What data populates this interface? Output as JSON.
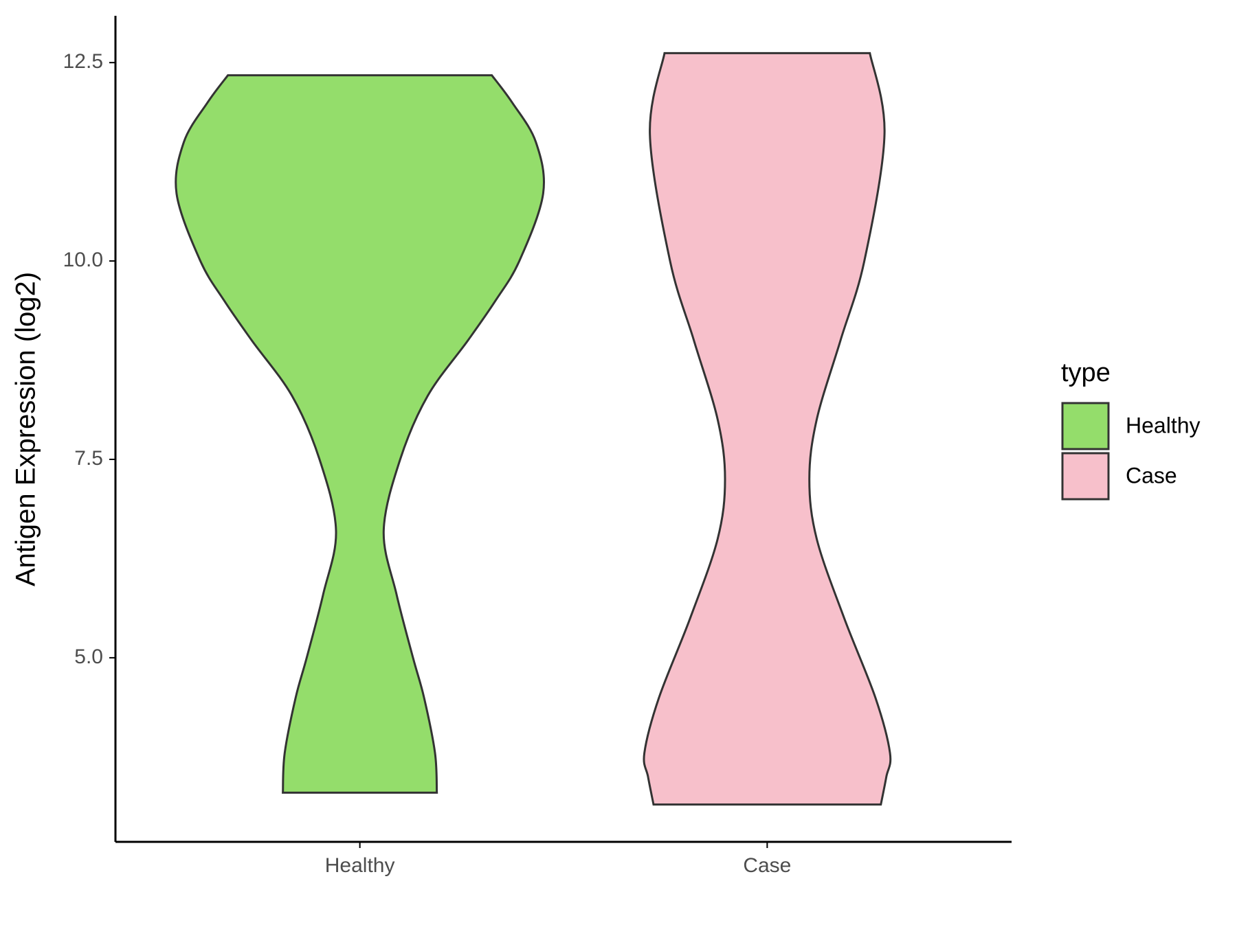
{
  "chart_data": {
    "type": "violin",
    "y_label": "Antigen Expression (log2)",
    "categories": [
      "Healthy",
      "Case"
    ],
    "ylim": [
      2.68,
      13.09
    ],
    "yticks": [
      {
        "value": 5,
        "label": "5.0"
      },
      7.5,
      {
        "value": 10,
        "label": "10.0"
      },
      12.5
    ],
    "legend_title": "type",
    "legend_position": "right",
    "series": [
      {
        "name": "Healthy",
        "color": "#94dd6b",
        "levels": [
          3.3,
          3.8,
          4.5,
          5.0,
          5.8,
          6.6,
          7.5,
          8.3,
          9.0,
          9.5,
          10.0,
          10.85,
          11.5,
          12.0,
          12.34
        ],
        "density": [
          0.42,
          0.41,
          0.35,
          0.29,
          0.2,
          0.13,
          0.22,
          0.37,
          0.59,
          0.74,
          0.87,
          1.0,
          0.96,
          0.83,
          0.72
        ]
      },
      {
        "name": "Case",
        "color": "#f7c0cb",
        "levels": [
          3.15,
          3.5,
          3.8,
          4.5,
          5.5,
          6.5,
          7.25,
          8.0,
          9.0,
          10.0,
          11.6,
          12.62
        ],
        "density": [
          0.62,
          0.65,
          0.67,
          0.59,
          0.42,
          0.27,
          0.23,
          0.27,
          0.4,
          0.53,
          0.64,
          0.56
        ]
      }
    ]
  }
}
